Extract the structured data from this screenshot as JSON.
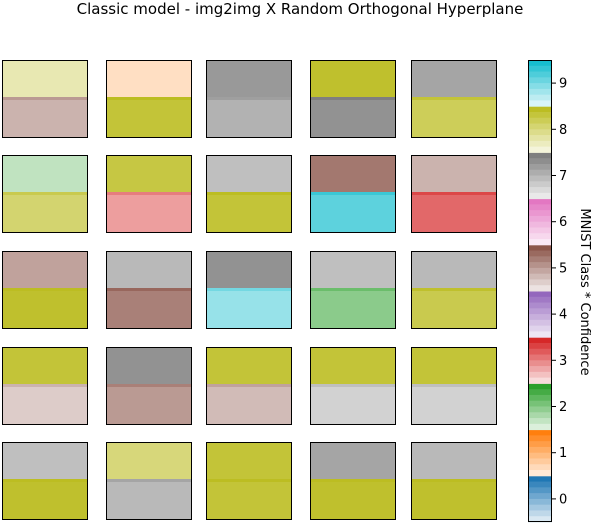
{
  "chart_data": {
    "type": "heatmap",
    "title": "Classic model - img2img X Random Orthogonal Hyperplane",
    "colorbar": {
      "label": "MNIST Class * Confidence",
      "ticks": [
        "0",
        "1",
        "2",
        "3",
        "4",
        "5",
        "6",
        "7",
        "8",
        "9"
      ],
      "colors": [
        "#1f77b4",
        "#ff7f0e",
        "#2ca02c",
        "#d62728",
        "#9467bd",
        "#8c564b",
        "#e377c2",
        "#7f7f7f",
        "#bcbd22",
        "#17becf"
      ]
    },
    "grid": {
      "rows": 5,
      "cols": 5
    },
    "panels": [
      {
        "top": 8,
        "top_conf": 0.35,
        "bottom": 5,
        "bottom_conf": 0.45
      },
      {
        "top": 1,
        "top_conf": 0.25,
        "bottom": 8,
        "bottom_conf": 0.9
      },
      {
        "top": 7,
        "top_conf": 0.8,
        "bottom": 7,
        "bottom_conf": 0.6
      },
      {
        "top": 8,
        "top_conf": 0.95,
        "bottom": 7,
        "bottom_conf": 0.85
      },
      {
        "top": 7,
        "top_conf": 0.7,
        "bottom": 8,
        "bottom_conf": 0.75
      },
      {
        "top": 2,
        "top_conf": 0.3,
        "bottom": 8,
        "bottom_conf": 0.65
      },
      {
        "top": 8,
        "top_conf": 0.85,
        "bottom": 3,
        "bottom_conf": 0.45
      },
      {
        "top": 7,
        "top_conf": 0.5,
        "bottom": 8,
        "bottom_conf": 0.9
      },
      {
        "top": 5,
        "top_conf": 0.8,
        "bottom": 9,
        "bottom_conf": 0.7
      },
      {
        "top": 5,
        "top_conf": 0.45,
        "bottom": 3,
        "bottom_conf": 0.7
      },
      {
        "top": 5,
        "top_conf": 0.55,
        "bottom": 8,
        "bottom_conf": 0.95
      },
      {
        "top": 7,
        "top_conf": 0.55,
        "bottom": 5,
        "bottom_conf": 0.75
      },
      {
        "top": 7,
        "top_conf": 0.85,
        "bottom": 9,
        "bottom_conf": 0.45
      },
      {
        "top": 7,
        "top_conf": 0.5,
        "bottom": 2,
        "bottom_conf": 0.55
      },
      {
        "top": 7,
        "top_conf": 0.55,
        "bottom": 8,
        "bottom_conf": 0.8
      },
      {
        "top": 8,
        "top_conf": 0.9,
        "bottom": 5,
        "bottom_conf": 0.3
      },
      {
        "top": 7,
        "top_conf": 0.85,
        "bottom": 5,
        "bottom_conf": 0.6
      },
      {
        "top": 8,
        "top_conf": 0.9,
        "bottom": 5,
        "bottom_conf": 0.4
      },
      {
        "top": 8,
        "top_conf": 0.9,
        "bottom": 7,
        "bottom_conf": 0.35
      },
      {
        "top": 8,
        "top_conf": 0.9,
        "bottom": 7,
        "bottom_conf": 0.35
      },
      {
        "top": 7,
        "top_conf": 0.5,
        "bottom": 8,
        "bottom_conf": 0.95
      },
      {
        "top": 8,
        "top_conf": 0.6,
        "bottom": 7,
        "bottom_conf": 0.55
      },
      {
        "top": 8,
        "top_conf": 0.9,
        "bottom": 8,
        "bottom_conf": 0.9
      },
      {
        "top": 7,
        "top_conf": 0.7,
        "bottom": 8,
        "bottom_conf": 0.95
      },
      {
        "top": 7,
        "top_conf": 0.55,
        "bottom": 8,
        "bottom_conf": 0.95
      }
    ]
  }
}
